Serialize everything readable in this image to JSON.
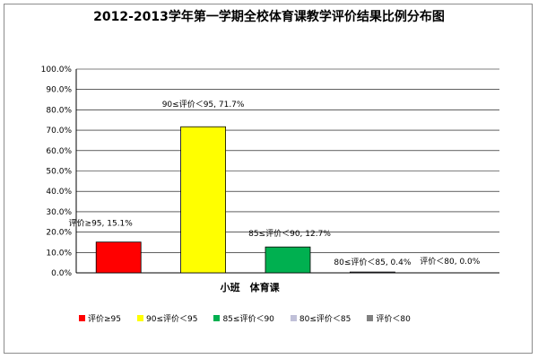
{
  "chart_data": {
    "type": "bar",
    "title": "2012-2013学年第一学期全校体育课教学评价结果比例分布图",
    "category_label": "小班　体育课",
    "ylim": [
      0,
      100
    ],
    "y_ticks": [
      "0.0%",
      "10.0%",
      "20.0%",
      "30.0%",
      "40.0%",
      "50.0%",
      "60.0%",
      "70.0%",
      "80.0%",
      "90.0%",
      "100.0%"
    ],
    "grid": true,
    "legend_position": "bottom",
    "series": [
      {
        "name": "评价≥95",
        "value": 15.1,
        "label": "评价≥95, 15.1%",
        "color": "#ff0000"
      },
      {
        "name": "90≤评价＜95",
        "value": 71.7,
        "label": "90≤评价＜95, 71.7%",
        "color": "#ffff00"
      },
      {
        "name": "85≤评价＜90",
        "value": 12.7,
        "label": "85≤评价＜90, 12.7%",
        "color": "#00b050"
      },
      {
        "name": "80≤评价＜85",
        "value": 0.4,
        "label": "80≤评价＜85, 0.4%",
        "color": "#c0c0d8"
      },
      {
        "name": "评价＜80",
        "value": 0.0,
        "label": "评价＜80, 0.0%",
        "color": "#808080"
      }
    ]
  }
}
